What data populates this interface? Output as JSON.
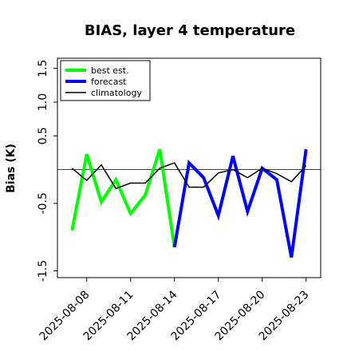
{
  "chart_data": {
    "type": "line",
    "title": "BIAS, layer 4 temperature",
    "ylabel": "Bias (K)",
    "xlabel": "",
    "ylim": [
      -1.6,
      1.65
    ],
    "xlim": [
      "2025-08-06",
      "2025-08-24"
    ],
    "y_ticks": [
      "-1.5",
      "-0.5",
      "0.5",
      "1.0",
      "1.5"
    ],
    "y_tick_values": [
      -1.5,
      -0.5,
      0.5,
      1.0,
      1.5
    ],
    "x_ticks": [
      "2025-08-08",
      "2025-08-11",
      "2025-08-14",
      "2025-08-17",
      "2025-08-20",
      "2025-08-23"
    ],
    "highlighted_x_tick": "2025-08-14",
    "highlight_color": "#228B22",
    "zero_line": true,
    "grid": false,
    "legend": "top-left",
    "series": [
      {
        "name": "best est.",
        "color": "#00ff00",
        "points": [
          {
            "x": "2025-08-07",
            "y": -0.9
          },
          {
            "x": "2025-08-08",
            "y": 0.23
          },
          {
            "x": "2025-08-09",
            "y": -0.48
          },
          {
            "x": "2025-08-10",
            "y": -0.15
          },
          {
            "x": "2025-08-11",
            "y": -0.65
          },
          {
            "x": "2025-08-12",
            "y": -0.38
          },
          {
            "x": "2025-08-13",
            "y": 0.3
          },
          {
            "x": "2025-08-14",
            "y": -1.15
          }
        ]
      },
      {
        "name": "forecast",
        "color": "#0000ff",
        "points": [
          {
            "x": "2025-08-14",
            "y": -1.15
          },
          {
            "x": "2025-08-15",
            "y": 0.1
          },
          {
            "x": "2025-08-16",
            "y": -0.12
          },
          {
            "x": "2025-08-17",
            "y": -0.68
          },
          {
            "x": "2025-08-18",
            "y": 0.2
          },
          {
            "x": "2025-08-19",
            "y": -0.62
          },
          {
            "x": "2025-08-20",
            "y": 0.02
          },
          {
            "x": "2025-08-21",
            "y": -0.15
          },
          {
            "x": "2025-08-22",
            "y": -1.3
          },
          {
            "x": "2025-08-23",
            "y": 0.3
          }
        ]
      },
      {
        "name": "climatology",
        "color": "#000000",
        "points": [
          {
            "x": "2025-08-07",
            "y": 0.02
          },
          {
            "x": "2025-08-08",
            "y": -0.16
          },
          {
            "x": "2025-08-09",
            "y": 0.07
          },
          {
            "x": "2025-08-10",
            "y": -0.28
          },
          {
            "x": "2025-08-11",
            "y": -0.2
          },
          {
            "x": "2025-08-12",
            "y": -0.2
          },
          {
            "x": "2025-08-13",
            "y": 0.02
          },
          {
            "x": "2025-08-14",
            "y": 0.1
          },
          {
            "x": "2025-08-15",
            "y": -0.26
          },
          {
            "x": "2025-08-16",
            "y": -0.26
          },
          {
            "x": "2025-08-17",
            "y": -0.05
          },
          {
            "x": "2025-08-18",
            "y": 0.0
          },
          {
            "x": "2025-08-19",
            "y": -0.12
          },
          {
            "x": "2025-08-20",
            "y": 0.02
          },
          {
            "x": "2025-08-21",
            "y": -0.06
          },
          {
            "x": "2025-08-22",
            "y": -0.18
          },
          {
            "x": "2025-08-23",
            "y": 0.06
          }
        ]
      }
    ]
  }
}
